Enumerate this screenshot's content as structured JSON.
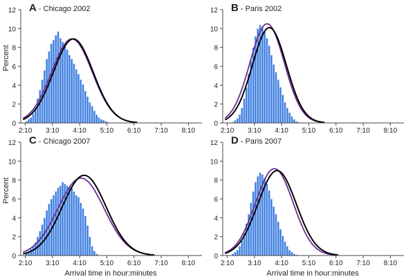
{
  "figure": {
    "bar_color": "#3f7fe0",
    "bar_edge": "#ffffff",
    "curve_colors": {
      "black": "#000000",
      "purple": "#6a2c91"
    },
    "x_axis_title": "Arrival time in hour:minutes",
    "y_axis_title": "Percent"
  },
  "chart_data": [
    {
      "type": "bar",
      "panel_letter": "A",
      "title": " - Chicago 2002",
      "x_unit": "minutes",
      "xlim": [
        120,
        520
      ],
      "ylim": [
        0,
        12
      ],
      "x_tick_values": [
        130,
        190,
        250,
        310,
        370,
        430,
        490
      ],
      "x_tick_labels": [
        "2:10",
        "3:10",
        "4:10",
        "5:10",
        "6:10",
        "7:10",
        "8:10"
      ],
      "y_ticks": [
        0,
        2,
        4,
        6,
        8,
        10,
        12
      ],
      "bin_start": 130,
      "bin_width": 5,
      "values": [
        0.2,
        0.4,
        0.6,
        1.0,
        1.6,
        2.6,
        3.5,
        4.6,
        5.6,
        6.8,
        7.6,
        8.4,
        8.8,
        9.3,
        9.7,
        9.0,
        8.6,
        8.2,
        7.8,
        7.2,
        6.8,
        6.3,
        5.7,
        5.2,
        4.6,
        4.1,
        3.4,
        2.8,
        2.2,
        1.8,
        1.3,
        0.9,
        0.6,
        0.4,
        0.3,
        0.2,
        0.1
      ],
      "curves": [
        {
          "color": "purple",
          "mean": 233,
          "sd": 44.8,
          "peak": 8.9
        },
        {
          "color": "black",
          "mean": 236,
          "sd": 43.8,
          "peak": 8.9
        }
      ]
    },
    {
      "type": "bar",
      "panel_letter": "B",
      "title": " - Paris 2002",
      "x_unit": "minutes",
      "xlim": [
        120,
        520
      ],
      "ylim": [
        0,
        12
      ],
      "x_tick_values": [
        130,
        190,
        250,
        310,
        370,
        430,
        490
      ],
      "x_tick_labels": [
        "2:10",
        "3:10",
        "4:10",
        "5:10",
        "6:10",
        "7:10",
        "8:10"
      ],
      "y_ticks": [
        0,
        2,
        4,
        6,
        8,
        10,
        12
      ],
      "bin_start": 140,
      "bin_width": 5,
      "values": [
        0.1,
        0.3,
        0.5,
        0.9,
        1.6,
        2.6,
        3.8,
        5.2,
        6.6,
        8.0,
        9.2,
        10.0,
        10.4,
        10.2,
        9.7,
        9.0,
        8.2,
        7.2,
        6.2,
        5.4,
        4.6,
        3.8,
        3.0,
        2.2,
        1.6,
        1.1,
        0.7,
        0.4,
        0.2,
        0.1
      ],
      "curves": [
        {
          "color": "purple",
          "mean": 218,
          "sd": 38.0,
          "peak": 10.5
        },
        {
          "color": "black",
          "mean": 223,
          "sd": 37.5,
          "peak": 10.1
        }
      ]
    },
    {
      "type": "bar",
      "panel_letter": "C",
      "title": " - Chicago 2007",
      "x_unit": "minutes",
      "xlim": [
        120,
        520
      ],
      "ylim": [
        0,
        12
      ],
      "x_tick_values": [
        130,
        190,
        250,
        310,
        370,
        430,
        490
      ],
      "x_tick_labels": [
        "2:10",
        "3:10",
        "4:10",
        "5:10",
        "6:10",
        "7:10",
        "8:10"
      ],
      "y_ticks": [
        0,
        2,
        4,
        6,
        8,
        10,
        12
      ],
      "bin_start": 130,
      "bin_width": 5,
      "values": [
        0.3,
        0.5,
        0.7,
        1.0,
        1.4,
        2.0,
        2.6,
        3.3,
        4.0,
        4.8,
        5.5,
        6.0,
        6.4,
        6.8,
        7.2,
        7.4,
        7.8,
        7.6,
        7.4,
        7.3,
        7.2,
        6.8,
        6.4,
        6.2,
        5.6,
        5.0,
        4.2,
        3.2,
        2.0,
        1.0,
        0.5,
        0.2
      ],
      "curves": [
        {
          "color": "purple",
          "mean": 253,
          "sd": 51.1,
          "peak": 8.2
        },
        {
          "color": "black",
          "mean": 260,
          "sd": 48.5,
          "peak": 8.5
        }
      ]
    },
    {
      "type": "bar",
      "panel_letter": "D",
      "title": " - Paris 2007",
      "x_unit": "minutes",
      "xlim": [
        120,
        520
      ],
      "ylim": [
        0,
        12
      ],
      "x_tick_values": [
        130,
        190,
        250,
        310,
        370,
        430,
        490
      ],
      "x_tick_labels": [
        "2:10",
        "3:10",
        "4:10",
        "5:10",
        "6:10",
        "7:10",
        "8:10"
      ],
      "y_ticks": [
        0,
        2,
        4,
        6,
        8,
        10,
        12
      ],
      "bin_start": 140,
      "bin_width": 5,
      "values": [
        0.2,
        0.4,
        0.6,
        1.0,
        1.6,
        2.4,
        3.4,
        4.4,
        5.6,
        6.8,
        7.8,
        8.4,
        8.8,
        8.6,
        8.2,
        7.6,
        6.9,
        6.0,
        5.2,
        4.4,
        3.6,
        2.8,
        2.1,
        1.5,
        1.0,
        0.6,
        0.4,
        0.2,
        0.1
      ],
      "curves": [
        {
          "color": "purple",
          "mean": 234,
          "sd": 41.6,
          "peak": 9.2
        },
        {
          "color": "black",
          "mean": 240,
          "sd": 42.5,
          "peak": 9.0
        }
      ]
    }
  ]
}
